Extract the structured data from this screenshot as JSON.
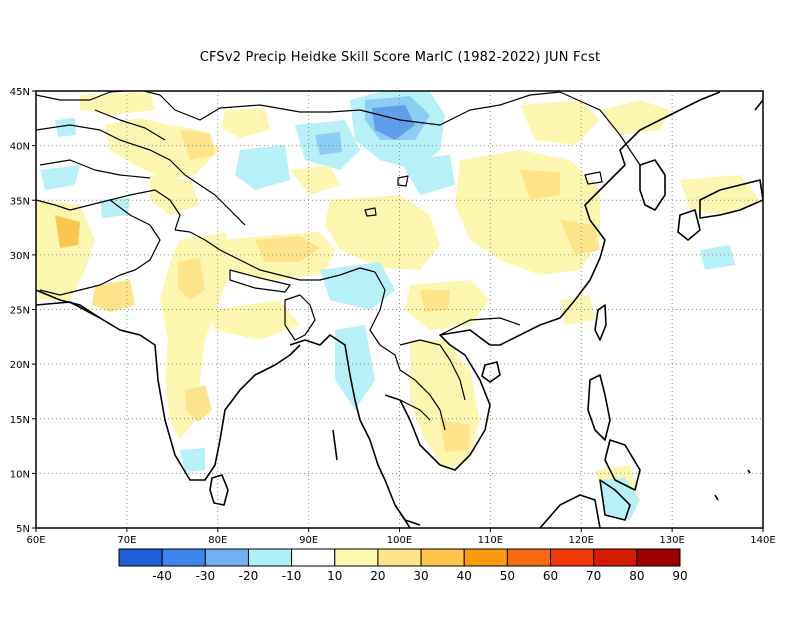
{
  "title": "CFSv2 Precip Heidke Skill Score MarIC (1982-2022) JUN Fcst",
  "map": {
    "lat_labels": [
      "45N",
      "40N",
      "35N",
      "30N",
      "25N",
      "20N",
      "15N",
      "10N",
      "5N"
    ],
    "lat_values": [
      45,
      40,
      35,
      30,
      25,
      20,
      15,
      10,
      5
    ],
    "lon_labels": [
      "60E",
      "70E",
      "80E",
      "90E",
      "100E",
      "110E",
      "120E",
      "130E",
      "140E"
    ],
    "lon_values": [
      60,
      70,
      80,
      90,
      100,
      110,
      120,
      130,
      140
    ],
    "lon_range": [
      60,
      140
    ],
    "lat_range": [
      5,
      45
    ]
  },
  "colorbar": {
    "labels": [
      "-40",
      "-30",
      "-20",
      "-10",
      "10",
      "20",
      "30",
      "40",
      "50",
      "60",
      "70",
      "80",
      "90"
    ],
    "colors": [
      "#1f5fd8",
      "#3d86ee",
      "#72b0f5",
      "#aeeef6",
      "#ffffff",
      "#fdfab0",
      "#fde589",
      "#fdc34a",
      "#fa9a0c",
      "#f66a10",
      "#f23a07",
      "#d41c03",
      "#a10000"
    ]
  },
  "colors": {
    "pos_light": "#fdf6b0",
    "pos_mid": "#fde48a",
    "pos_strong": "#fbc64f",
    "neg_light": "#b8f0f7",
    "neg_mid": "#8ccdf5",
    "neg_strong": "#5f9fea"
  }
}
